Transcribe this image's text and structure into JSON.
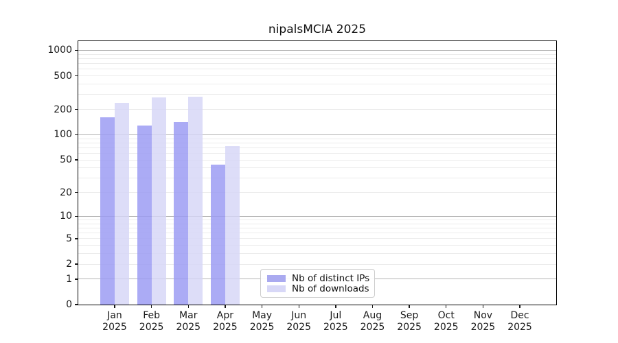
{
  "figure": {
    "title": "nipalsMCIA 2025",
    "colors": {
      "distinct_ips_bar": "#aaaaf5",
      "downloads_bar": "#dcdcf8",
      "distinct_ips_bar_rgba": "rgba(155,155,243,0.84)",
      "downloads_bar_rgba": "rgba(213,213,246,0.82)",
      "major_grid": "#b3b3b3",
      "minor_grid": "#ebebeb",
      "axis_text": "#1a1a1a"
    }
  },
  "legend": {
    "items": [
      {
        "label": "Nb of distinct IPs",
        "color": "#aaaaf0"
      },
      {
        "label": "Nb of downloads",
        "color": "#d8d8f7"
      }
    ]
  },
  "chart_data": {
    "type": "bar",
    "title": "nipalsMCIA 2025",
    "categories": [
      "Jan 2025",
      "Feb 2025",
      "Mar 2025",
      "Apr 2025",
      "May 2025",
      "Jun 2025",
      "Jul 2025",
      "Aug 2025",
      "Sep 2025",
      "Oct 2025",
      "Nov 2025",
      "Dec 2025"
    ],
    "x_tick_month": [
      "Jan",
      "Feb",
      "Mar",
      "Apr",
      "May",
      "Jun",
      "Jul",
      "Aug",
      "Sep",
      "Oct",
      "Nov",
      "Dec"
    ],
    "x_tick_year": "2025",
    "series": [
      {
        "name": "Nb of distinct IPs",
        "values": [
          160,
          130,
          142,
          44,
          null,
          null,
          null,
          null,
          null,
          null,
          null,
          null
        ]
      },
      {
        "name": "Nb of downloads",
        "values": [
          240,
          278,
          284,
          73,
          null,
          null,
          null,
          null,
          null,
          null,
          null,
          null
        ]
      }
    ],
    "yscale": "log1p",
    "xlabel": "",
    "ylabel": "",
    "yticks": [
      0,
      1,
      2,
      5,
      10,
      20,
      50,
      100,
      200,
      500,
      1000
    ],
    "major_grid_values": [
      1,
      10,
      100,
      1000
    ],
    "minor_grid_values": [
      2,
      3,
      4,
      5,
      6,
      7,
      8,
      9,
      20,
      30,
      40,
      50,
      60,
      70,
      80,
      90,
      200,
      300,
      400,
      500,
      600,
      700,
      800,
      900
    ],
    "ylim": [
      0,
      1285
    ],
    "grid": true,
    "legend_position": "lower center"
  }
}
